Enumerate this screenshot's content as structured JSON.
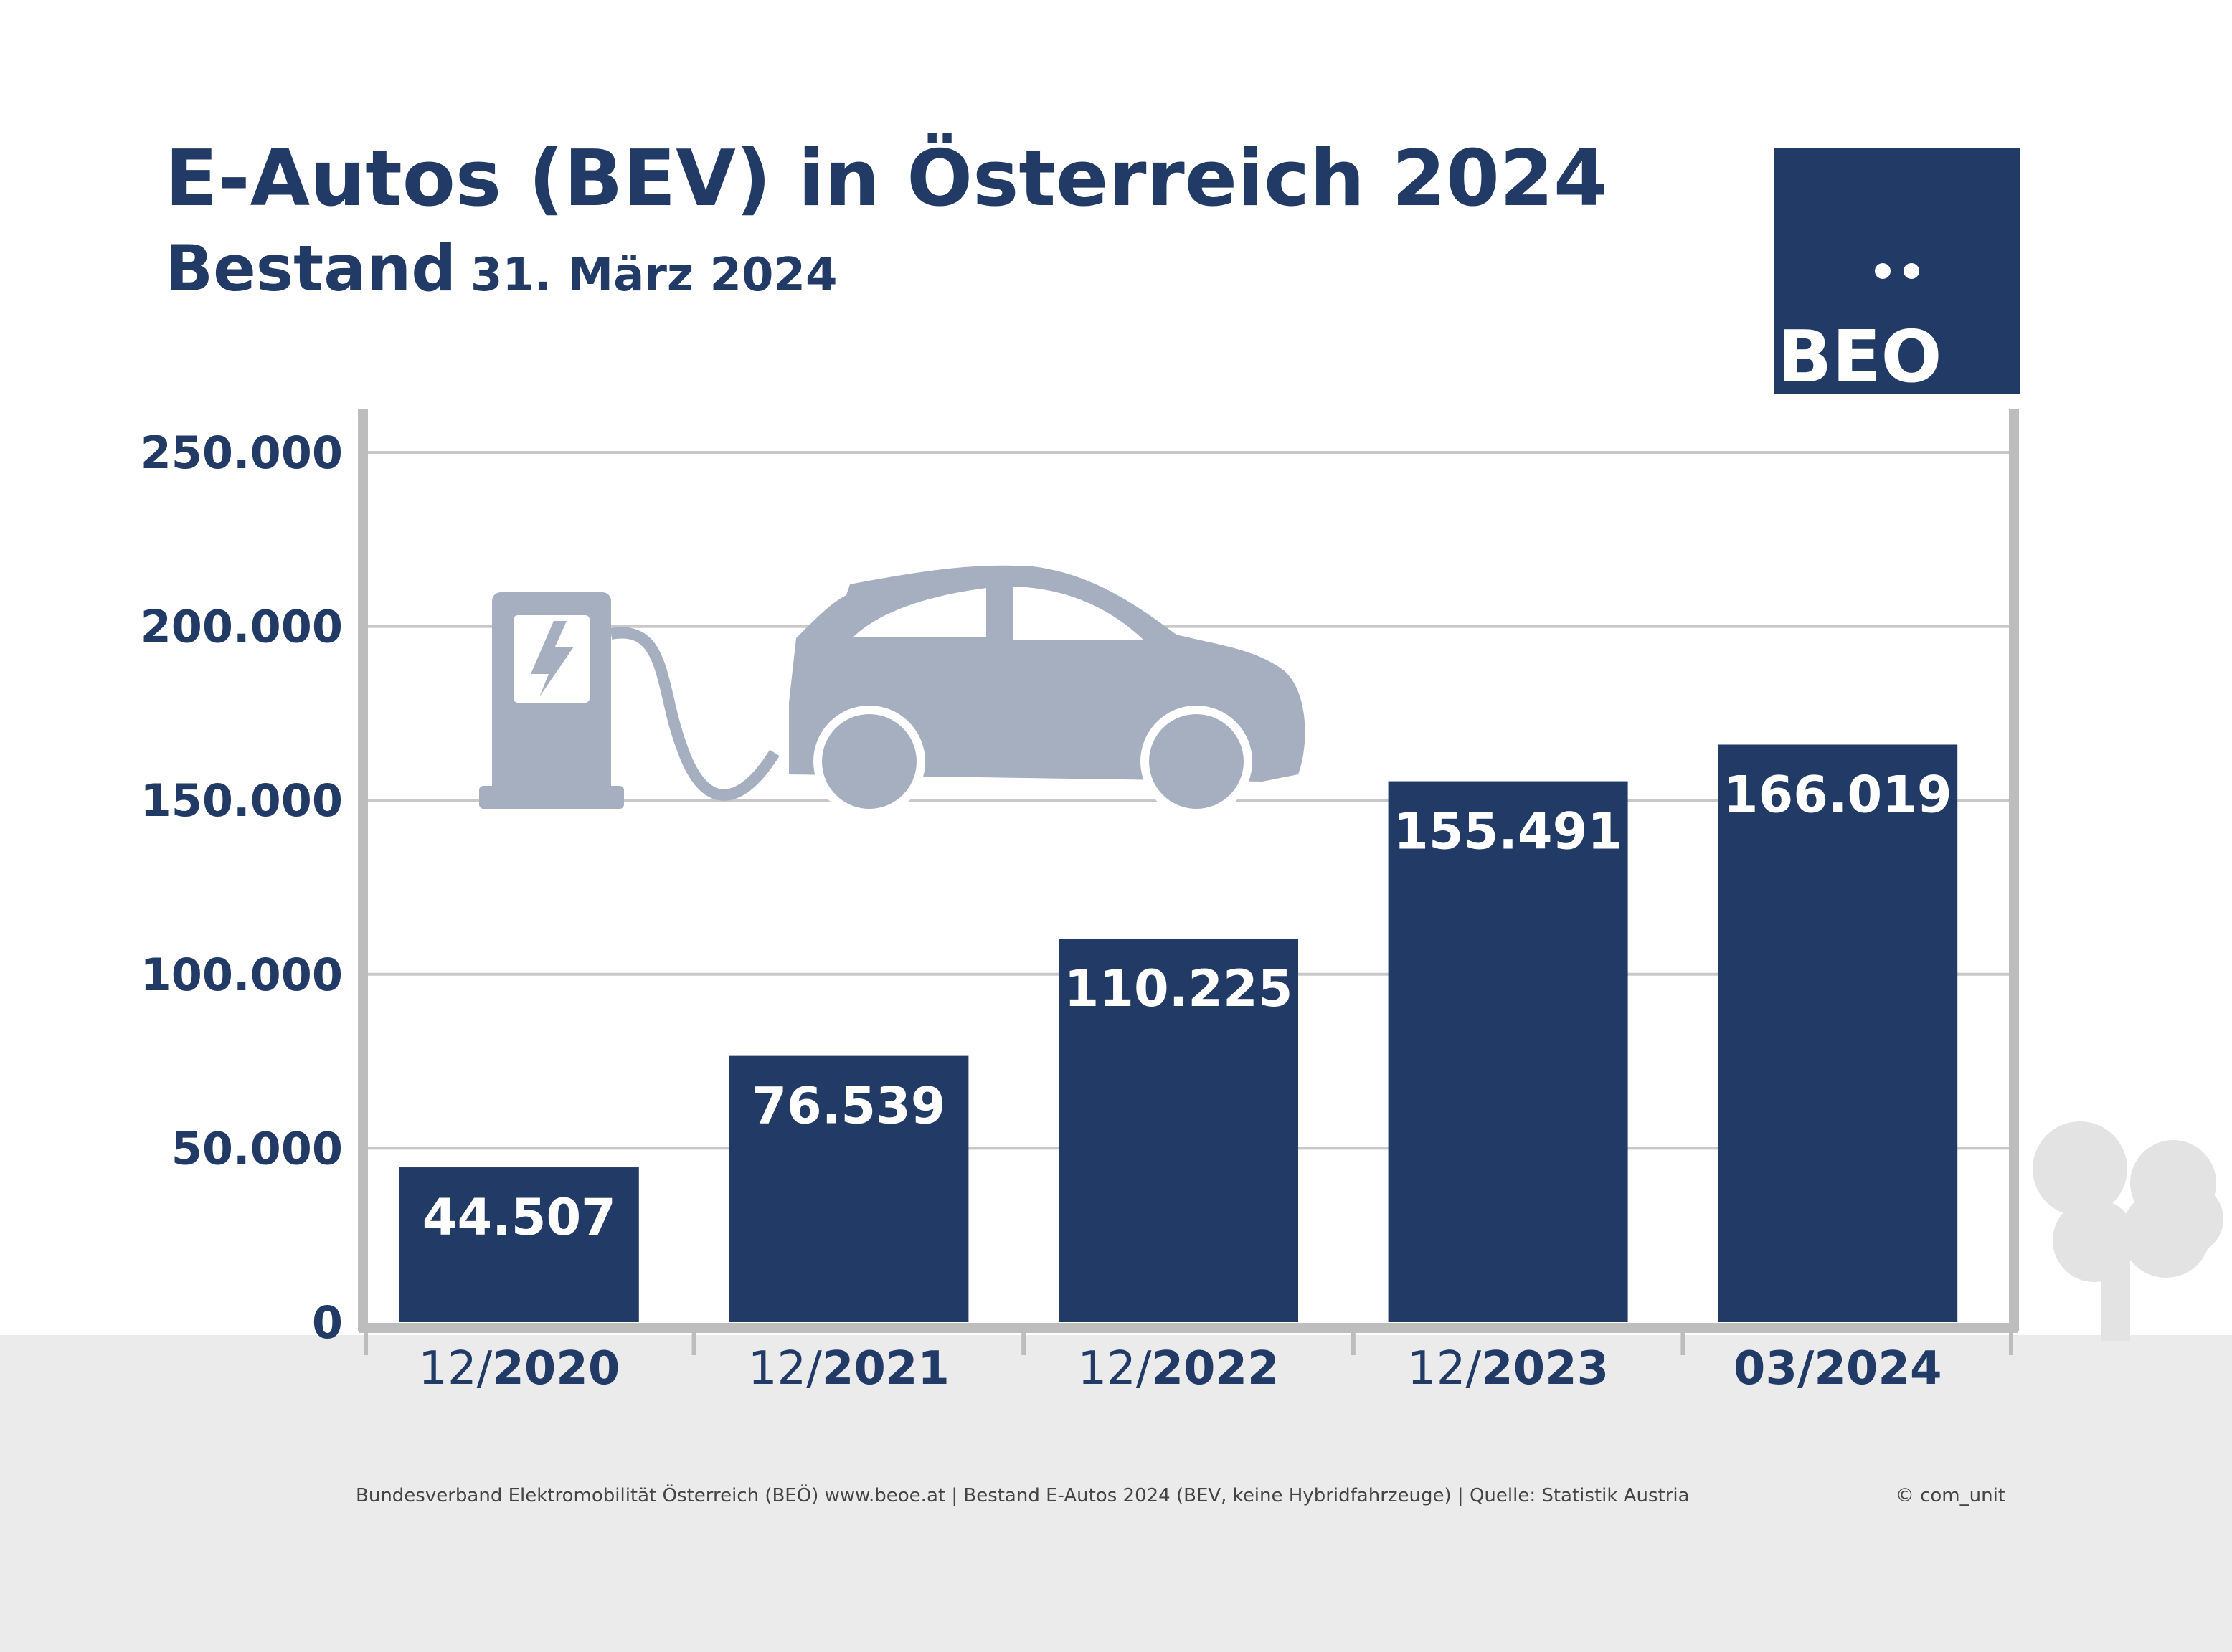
{
  "header": {
    "title": "E-Autos (BEV) in Österreich 2024",
    "subtitle_bold": "Bestand",
    "subtitle_date": "31. März 2024"
  },
  "logo": {
    "text": "BEÖ"
  },
  "colors": {
    "bar": "#223b66",
    "axis": "#bdbdbd",
    "grid": "#c8c8c8",
    "illustration": "#a6afbf",
    "ground": "#ebebeb"
  },
  "footer": {
    "source": "Bundesverband Elektromobilität Österreich (BEÖ) www.beoe.at | Bestand E-Autos 2024 (BEV, keine Hybridfahrzeuge) | Quelle: Statistik Austria",
    "copyright": "© com_unit"
  },
  "chart_data": {
    "type": "bar",
    "title": "E-Autos (BEV) in Österreich 2024",
    "categories": [
      {
        "prefix": "12/",
        "year": "2020"
      },
      {
        "prefix": "12/",
        "year": "2021"
      },
      {
        "prefix": "12/",
        "year": "2022"
      },
      {
        "prefix": "12/",
        "year": "2023"
      },
      {
        "prefix": "03/",
        "year": "2024"
      }
    ],
    "values": [
      44507,
      76539,
      110225,
      155491,
      166019
    ],
    "value_labels": [
      "44.507",
      "76.539",
      "110.225",
      "155.491",
      "166.019"
    ],
    "yticks": [
      0,
      50000,
      100000,
      150000,
      200000,
      250000
    ],
    "ytick_labels": [
      "0",
      "50.000",
      "100.000",
      "150.000",
      "200.000",
      "250.000"
    ],
    "ylim": [
      0,
      250000
    ],
    "grid": true,
    "illustrations": [
      "charging-station-icon",
      "electric-car-icon",
      "tree-icon"
    ]
  }
}
